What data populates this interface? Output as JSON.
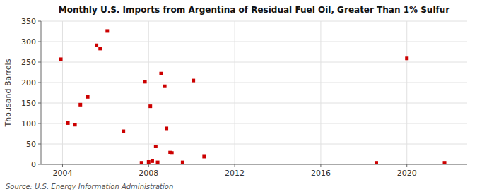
{
  "chart_data": {
    "type": "scatter",
    "title": "Monthly U.S. Imports from Argentina of Residual Fuel Oil, Greater Than 1% Sulfur",
    "y_label": "Thousand Barrels",
    "source": "Source: U.S. Energy Information Administration",
    "x": [
      2003.92,
      2004.25,
      2004.58,
      2004.83,
      2005.17,
      2005.58,
      2005.75,
      2006.08,
      2006.83,
      2007.67,
      2007.83,
      2008.0,
      2008.08,
      2008.17,
      2008.33,
      2008.42,
      2008.58,
      2008.75,
      2008.83,
      2009.0,
      2009.08,
      2009.58,
      2010.08,
      2010.58,
      2018.58,
      2020.0,
      2021.75
    ],
    "values": [
      257,
      101,
      97,
      146,
      165,
      291,
      283,
      326,
      81,
      4,
      202,
      6,
      142,
      8,
      44,
      5,
      222,
      191,
      88,
      29,
      28,
      5,
      205,
      19,
      4,
      259,
      4
    ],
    "color": "#cc0000",
    "marker": "square",
    "xlim": [
      2003.0,
      2022.8
    ],
    "ylim": [
      0,
      350
    ],
    "xticks": [
      2004,
      2008,
      2012,
      2016,
      2020
    ],
    "yticks": [
      0,
      50,
      100,
      150,
      200,
      250,
      300,
      350
    ],
    "grid": true
  }
}
